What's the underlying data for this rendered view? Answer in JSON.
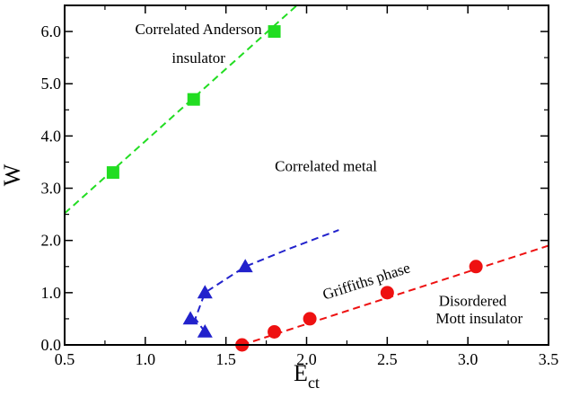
{
  "chart_data": {
    "type": "scatter",
    "title": "",
    "xlabel": "E",
    "xlabel_subscript": "ct",
    "ylabel": "W",
    "xlim": [
      0.5,
      3.5
    ],
    "ylim": [
      0.0,
      6.5
    ],
    "x_ticks": [
      0.5,
      1.0,
      1.5,
      2.0,
      2.5,
      3.0,
      3.5
    ],
    "x_tick_labels": [
      "0.5",
      "1.0",
      "1.5",
      "2.0",
      "2.5",
      "3.0",
      "3.5"
    ],
    "y_ticks": [
      0.0,
      1.0,
      2.0,
      3.0,
      4.0,
      5.0,
      6.0
    ],
    "y_tick_labels": [
      "0.0",
      "1.0",
      "2.0",
      "3.0",
      "4.0",
      "5.0",
      "6.0"
    ],
    "grid": false,
    "legend": "none",
    "series": [
      {
        "marker": "square",
        "color": "#22dd22",
        "points": [
          [
            0.8,
            3.3
          ],
          [
            1.3,
            4.7
          ],
          [
            1.8,
            6.0
          ]
        ],
        "fit_line": [
          [
            0.5,
            2.52
          ],
          [
            1.94,
            6.5
          ]
        ]
      },
      {
        "marker": "triangle",
        "color": "#2222cc",
        "points": [
          [
            1.28,
            0.5
          ],
          [
            1.37,
            0.25
          ],
          [
            1.37,
            1.0
          ],
          [
            1.62,
            1.5
          ]
        ],
        "fit_line": [
          [
            1.37,
            0.25
          ],
          [
            1.31,
            0.5
          ],
          [
            1.37,
            1.0
          ],
          [
            1.62,
            1.5
          ],
          [
            1.9,
            1.85
          ],
          [
            2.2,
            2.2
          ]
        ]
      },
      {
        "marker": "circle",
        "color": "#ee1111",
        "points": [
          [
            1.6,
            0.0
          ],
          [
            1.8,
            0.25
          ],
          [
            2.02,
            0.5
          ],
          [
            2.5,
            1.0
          ],
          [
            3.05,
            1.5
          ]
        ],
        "fit_line": [
          [
            1.6,
            0.0
          ],
          [
            3.5,
            1.9
          ]
        ]
      }
    ],
    "annotations": [
      {
        "text": "Correlated Anderson",
        "x": 1.33,
        "y": 5.95,
        "anchor": "middle",
        "rotate": 0
      },
      {
        "text": "insulator",
        "x": 1.33,
        "y": 5.4,
        "anchor": "middle",
        "rotate": 0
      },
      {
        "text": "Correlated metal",
        "x": 2.12,
        "y": 3.33,
        "anchor": "middle",
        "rotate": 0
      },
      {
        "text": "Griffiths phase",
        "x": 2.38,
        "y": 1.13,
        "anchor": "middle",
        "rotate": -18
      },
      {
        "text": "Disordered",
        "x": 3.03,
        "y": 0.75,
        "anchor": "middle",
        "rotate": 0
      },
      {
        "text": "Mott insulator",
        "x": 3.07,
        "y": 0.41,
        "anchor": "middle",
        "rotate": 0
      }
    ]
  }
}
